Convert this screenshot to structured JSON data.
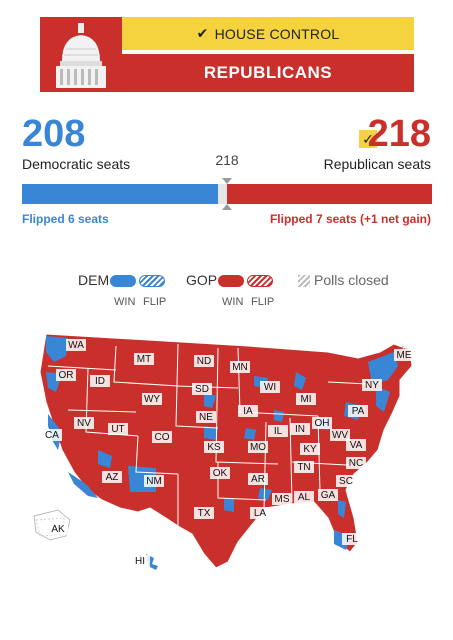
{
  "header": {
    "control_label": "HOUSE CONTROL",
    "winner": "REPUBLICANS",
    "check_icon": "check-icon"
  },
  "seats": {
    "dem_count": "208",
    "dem_label": "Democratic seats",
    "rep_count": "218",
    "rep_label": "Republican seats",
    "majority": "218",
    "dem_flipped": "Flipped 6 seats",
    "rep_flipped": "Flipped 7 seats (+1 net gain)",
    "dem_share": 0.478,
    "rep_share": 0.501
  },
  "legend": {
    "dem": "DEM",
    "gop": "GOP",
    "win": "WIN",
    "flip": "FLIP",
    "polls_closed": "Polls closed"
  },
  "map": {
    "states": [
      "WA",
      "OR",
      "ID",
      "MT",
      "ND",
      "MN",
      "WI",
      "MI",
      "NY",
      "ME",
      "CA",
      "NV",
      "UT",
      "WY",
      "SD",
      "IA",
      "PA",
      "OH",
      "IN",
      "IL",
      "NE",
      "CO",
      "KS",
      "MO",
      "KY",
      "WV",
      "VA",
      "AZ",
      "NM",
      "OK",
      "AR",
      "TN",
      "NC",
      "SC",
      "GA",
      "AL",
      "MS",
      "LA",
      "TX",
      "FL",
      "AK",
      "HI"
    ]
  },
  "colors": {
    "dem": "#3a86d6",
    "rep": "#c9302c",
    "control": "#f4d33f"
  }
}
